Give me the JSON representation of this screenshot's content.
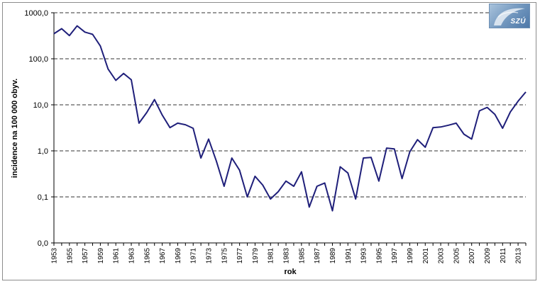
{
  "chart_data": {
    "type": "line",
    "scale": "log",
    "xlabel": "rok",
    "ylabel": "incidence na 100 000 obyv.",
    "ylim": [
      0.01,
      1000
    ],
    "y_ticks": [
      {
        "value": 0.01,
        "label": "0,0"
      },
      {
        "value": 0.1,
        "label": "0,1"
      },
      {
        "value": 1,
        "label": "1,0"
      },
      {
        "value": 10,
        "label": "10,0"
      },
      {
        "value": 100,
        "label": "100,0"
      },
      {
        "value": 1000,
        "label": "1000,0"
      }
    ],
    "x_tick_labels": [
      "1953",
      "1955",
      "1957",
      "1959",
      "1961",
      "1963",
      "1965",
      "1967",
      "1969",
      "1971",
      "1973",
      "1975",
      "1977",
      "1979",
      "1981",
      "1983",
      "1985",
      "1987",
      "1989",
      "1991",
      "1993",
      "1995",
      "1997",
      "1999",
      "2001",
      "2003",
      "2005",
      "2007",
      "2009",
      "2011",
      "2013"
    ],
    "grid": "horizontal-dashed",
    "series_color": "#1f1f7a",
    "x": [
      1953,
      1954,
      1955,
      1956,
      1957,
      1958,
      1959,
      1960,
      1961,
      1962,
      1963,
      1964,
      1965,
      1966,
      1967,
      1968,
      1969,
      1970,
      1971,
      1972,
      1973,
      1974,
      1975,
      1976,
      1977,
      1978,
      1979,
      1980,
      1981,
      1982,
      1983,
      1984,
      1985,
      1986,
      1987,
      1988,
      1989,
      1990,
      1991,
      1992,
      1993,
      1994,
      1995,
      1996,
      1997,
      1998,
      1999,
      2000,
      2001,
      2002,
      2003,
      2004,
      2005,
      2006,
      2007,
      2008,
      2009,
      2010,
      2011,
      2012,
      2013,
      2014
    ],
    "values": [
      350,
      450,
      320,
      520,
      380,
      340,
      190,
      60,
      34,
      48,
      35,
      4,
      6.8,
      13,
      6,
      3.2,
      4,
      3.7,
      3.1,
      0.7,
      1.8,
      0.6,
      0.17,
      0.7,
      0.38,
      0.1,
      0.28,
      0.18,
      0.09,
      0.13,
      0.22,
      0.17,
      0.35,
      0.06,
      0.17,
      0.2,
      0.05,
      0.45,
      0.33,
      0.09,
      0.7,
      0.72,
      0.22,
      1.15,
      1.1,
      0.25,
      0.95,
      1.75,
      1.2,
      3.2,
      3.3,
      3.6,
      4,
      2.3,
      1.8,
      7.4,
      8.8,
      6.2,
      3.1,
      7,
      12,
      19
    ]
  },
  "logo": {
    "text": "SZÚ"
  }
}
